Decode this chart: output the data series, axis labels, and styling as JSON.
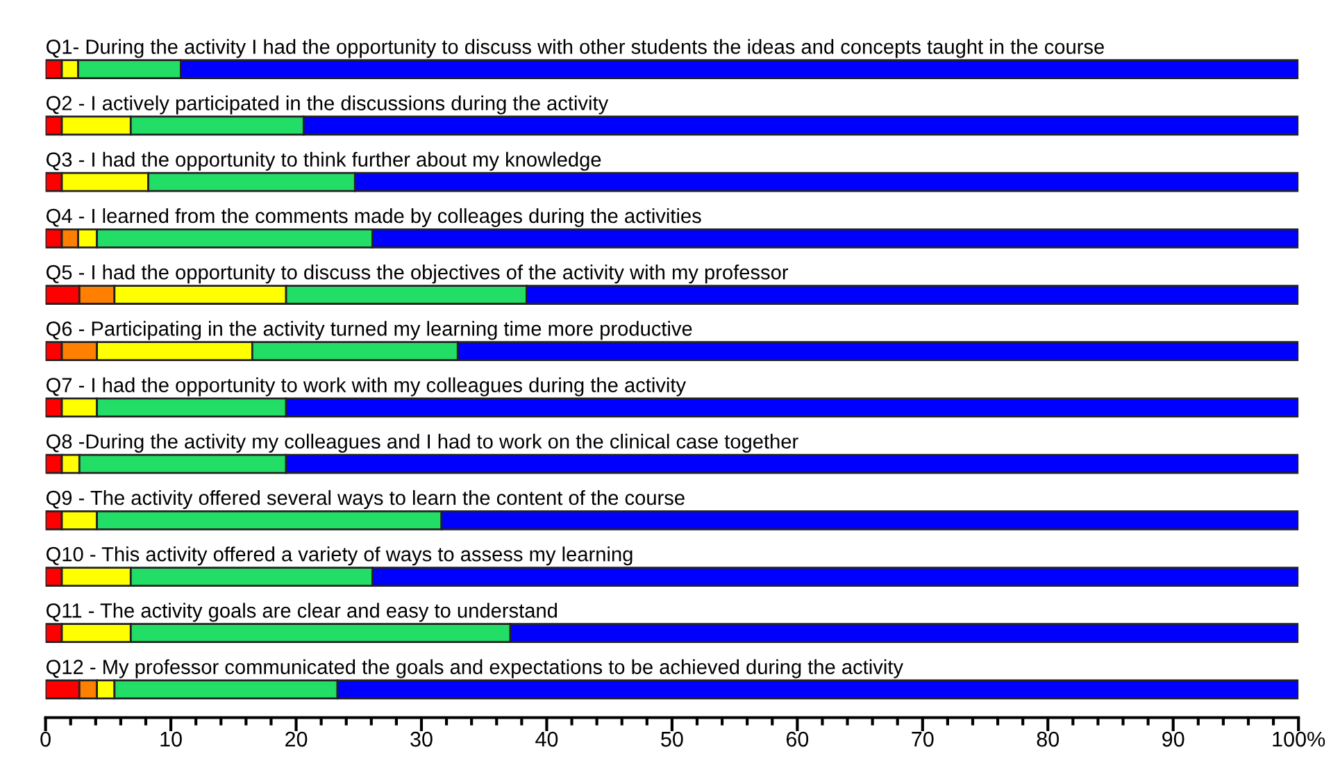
{
  "chart_data": {
    "type": "bar",
    "orientation": "horizontal",
    "stacked": true,
    "categories": [
      "Q1- During the activity I had the opportunity to discuss with other students the ideas and concepts taught in the course",
      "Q2 - I actively participated in the discussions during the activity",
      "Q3 - I had the opportunity to think further about my knowledge",
      "Q4 - I learned from the comments made by colleages during the activities",
      "Q5 - I had the opportunity to discuss the objectives of the activity with my professor",
      "Q6 - Participating in the activity turned my learning time more productive",
      "Q7 - I had the opportunity to work with my colleagues during the activity",
      "Q8 -During the activity my colleagues and I had to work on the clinical case together",
      "Q9 - The activity offered several ways to learn the content of the course",
      "Q10 - This activity offered a variety of ways to assess my learning",
      "Q11 - The activity goals are clear and easy to understand",
      "Q12 - My professor communicated the goals and expectations to be achieved during the activity"
    ],
    "series": [
      {
        "color": "#ff0000",
        "values": [
          1.3,
          1.3,
          1.3,
          1.3,
          2.7,
          1.3,
          1.3,
          1.3,
          1.3,
          1.3,
          1.3,
          2.7
        ]
      },
      {
        "color": "#ff8000",
        "values": [
          null,
          null,
          null,
          1.3,
          2.8,
          2.8,
          null,
          null,
          null,
          null,
          null,
          1.4
        ]
      },
      {
        "color": "#ffff00",
        "values": [
          1.3,
          5.5,
          6.9,
          1.5,
          13.7,
          12.4,
          2.8,
          1.4,
          2.8,
          5.5,
          5.5,
          1.4
        ]
      },
      {
        "color": "#22dd66",
        "values": [
          8.2,
          13.8,
          16.5,
          22.0,
          19.2,
          16.4,
          15.1,
          16.5,
          27.5,
          19.3,
          30.3,
          17.8
        ]
      },
      {
        "color": "#0000ff",
        "values": [
          89.2,
          79.4,
          75.3,
          73.9,
          61.6,
          67.1,
          80.8,
          80.8,
          68.4,
          73.9,
          62.9,
          76.7
        ]
      }
    ],
    "xlim": [
      0,
      100
    ],
    "xticks": [
      0,
      {
        "value": 2,
        "label": null
      },
      {
        "value": 4,
        "label": null
      },
      {
        "value": 6,
        "label": null
      },
      {
        "value": 8,
        "label": null
      },
      10,
      {
        "value": 12,
        "label": null
      },
      {
        "value": 14,
        "label": null
      },
      {
        "value": 16,
        "label": null
      },
      {
        "value": 18,
        "label": null
      },
      20,
      {
        "value": 22,
        "label": null
      },
      {
        "value": 24,
        "label": null
      },
      {
        "value": 26,
        "label": null
      },
      {
        "value": 28,
        "label": null
      },
      30,
      {
        "value": 32,
        "label": null
      },
      {
        "value": 34,
        "label": null
      },
      {
        "value": 36,
        "label": null
      },
      {
        "value": 38,
        "label": null
      },
      40,
      {
        "value": 42,
        "label": null
      },
      {
        "value": 44,
        "label": null
      },
      {
        "value": 46,
        "label": null
      },
      {
        "value": 48,
        "label": null
      },
      50,
      {
        "value": 52,
        "label": null
      },
      {
        "value": 54,
        "label": null
      },
      {
        "value": 56,
        "label": null
      },
      {
        "value": 58,
        "label": null
      },
      60,
      {
        "value": 62,
        "label": null
      },
      {
        "value": 64,
        "label": null
      },
      {
        "value": 66,
        "label": null
      },
      {
        "value": 68,
        "label": null
      },
      70,
      {
        "value": 72,
        "label": null
      },
      {
        "value": 74,
        "label": null
      },
      {
        "value": 76,
        "label": null
      },
      {
        "value": 78,
        "label": null
      },
      80,
      {
        "value": 82,
        "label": null
      },
      {
        "value": 84,
        "label": null
      },
      {
        "value": 86,
        "label": null
      },
      {
        "value": 88,
        "label": null
      },
      90,
      {
        "value": 92,
        "label": null
      },
      {
        "value": 94,
        "label": null
      },
      {
        "value": 96,
        "label": null
      },
      {
        "value": 98,
        "label": null
      },
      {
        "value": 100,
        "label": "100%"
      }
    ],
    "grid": false,
    "legend": false
  }
}
